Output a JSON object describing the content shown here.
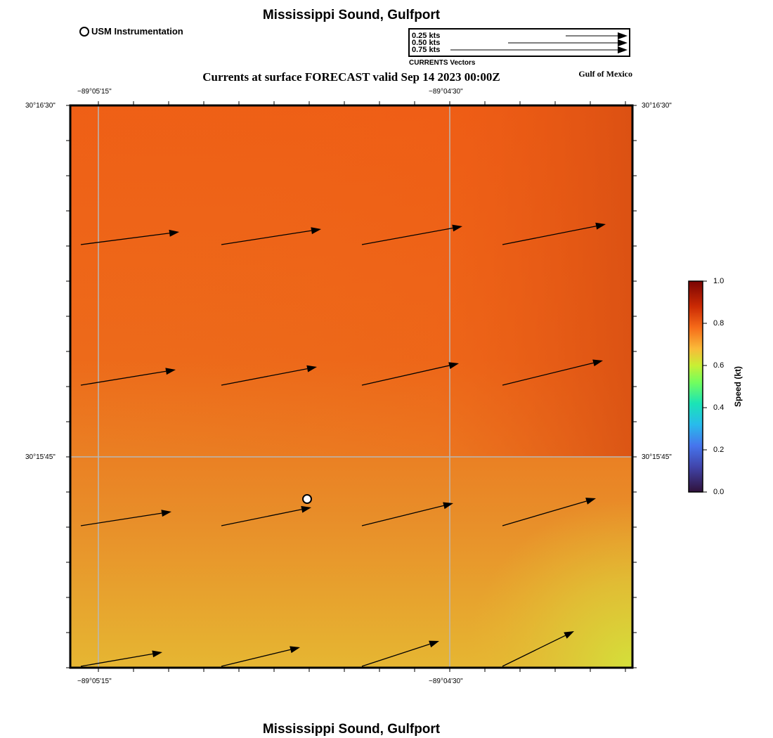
{
  "header": {
    "title": "Mississippi Sound, Gulfport",
    "subtitle": "Currents at surface FORECAST valid Sep 14 2023 00:00Z",
    "region": "Gulf of Mexico"
  },
  "footer": {
    "title": "Mississippi Sound, Gulfport"
  },
  "station_legend": {
    "label": "USM Instrumentation"
  },
  "vector_legend": {
    "caption": "CURRENTS Vectors",
    "entries": [
      "0.25 kts",
      "0.50 kts",
      "0.75 kts"
    ],
    "speeds_kt": [
      0.25,
      0.5,
      0.75
    ]
  },
  "axes": {
    "lon_ticks": [
      "−89°05'15\"",
      "−89°04'30\""
    ],
    "lat_ticks": [
      "30°16'30\"",
      "30°15'45\""
    ]
  },
  "colorbar": {
    "label": "Speed (kt)",
    "ticks": [
      "1.0",
      "0.8",
      "0.6",
      "0.4",
      "0.2",
      "0.0"
    ],
    "range_kt": [
      0.0,
      1.0
    ]
  },
  "colors": {
    "field_high": "#d84e12",
    "field_mid": "#ef5f16",
    "field_low": "#e8a830",
    "field_min": "#d4e03a",
    "grid": "#b8b8b8"
  },
  "icons": {
    "station": "station-circle-icon",
    "vector": "arrow-icon"
  },
  "map": {
    "station_marker": {
      "label": "USM Instrumentation"
    },
    "vector_rows": 4,
    "vector_cols": 4
  }
}
